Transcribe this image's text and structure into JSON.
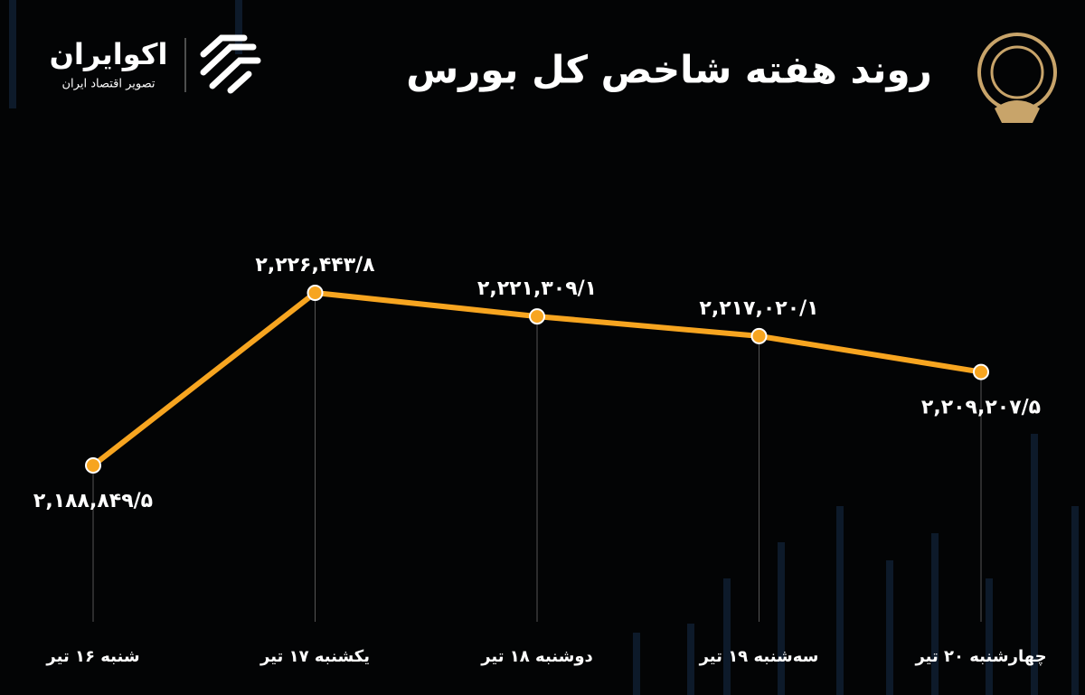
{
  "brand": {
    "name": "اکوایران",
    "tagline": "تصویر اقتصاد ایران"
  },
  "chart_data": {
    "type": "line",
    "title": "روند هفته شاخص کل بورس",
    "categories": [
      "شنبه ۱۶ تیر",
      "یکشنبه ۱۷ تیر",
      "دوشنبه ۱۸ تیر",
      "سه‌شنبه ۱۹ تیر",
      "چهارشنبه ۲۰ تیر"
    ],
    "series": [
      {
        "name": "شاخص کل بورس",
        "color": "#f7a520",
        "values": [
          2188849.5,
          2226443.8,
          2221309.1,
          2217020.1,
          2209207.5
        ],
        "value_labels": [
          "۲,۱۸۸,۸۴۹/۵",
          "۲,۲۲۶,۴۴۳/۸",
          "۲,۲۲۱,۳۰۹/۱",
          "۲,۲۱۷,۰۲۰/۱",
          "۲,۲۰۹,۲۰۷/۵"
        ]
      }
    ]
  }
}
